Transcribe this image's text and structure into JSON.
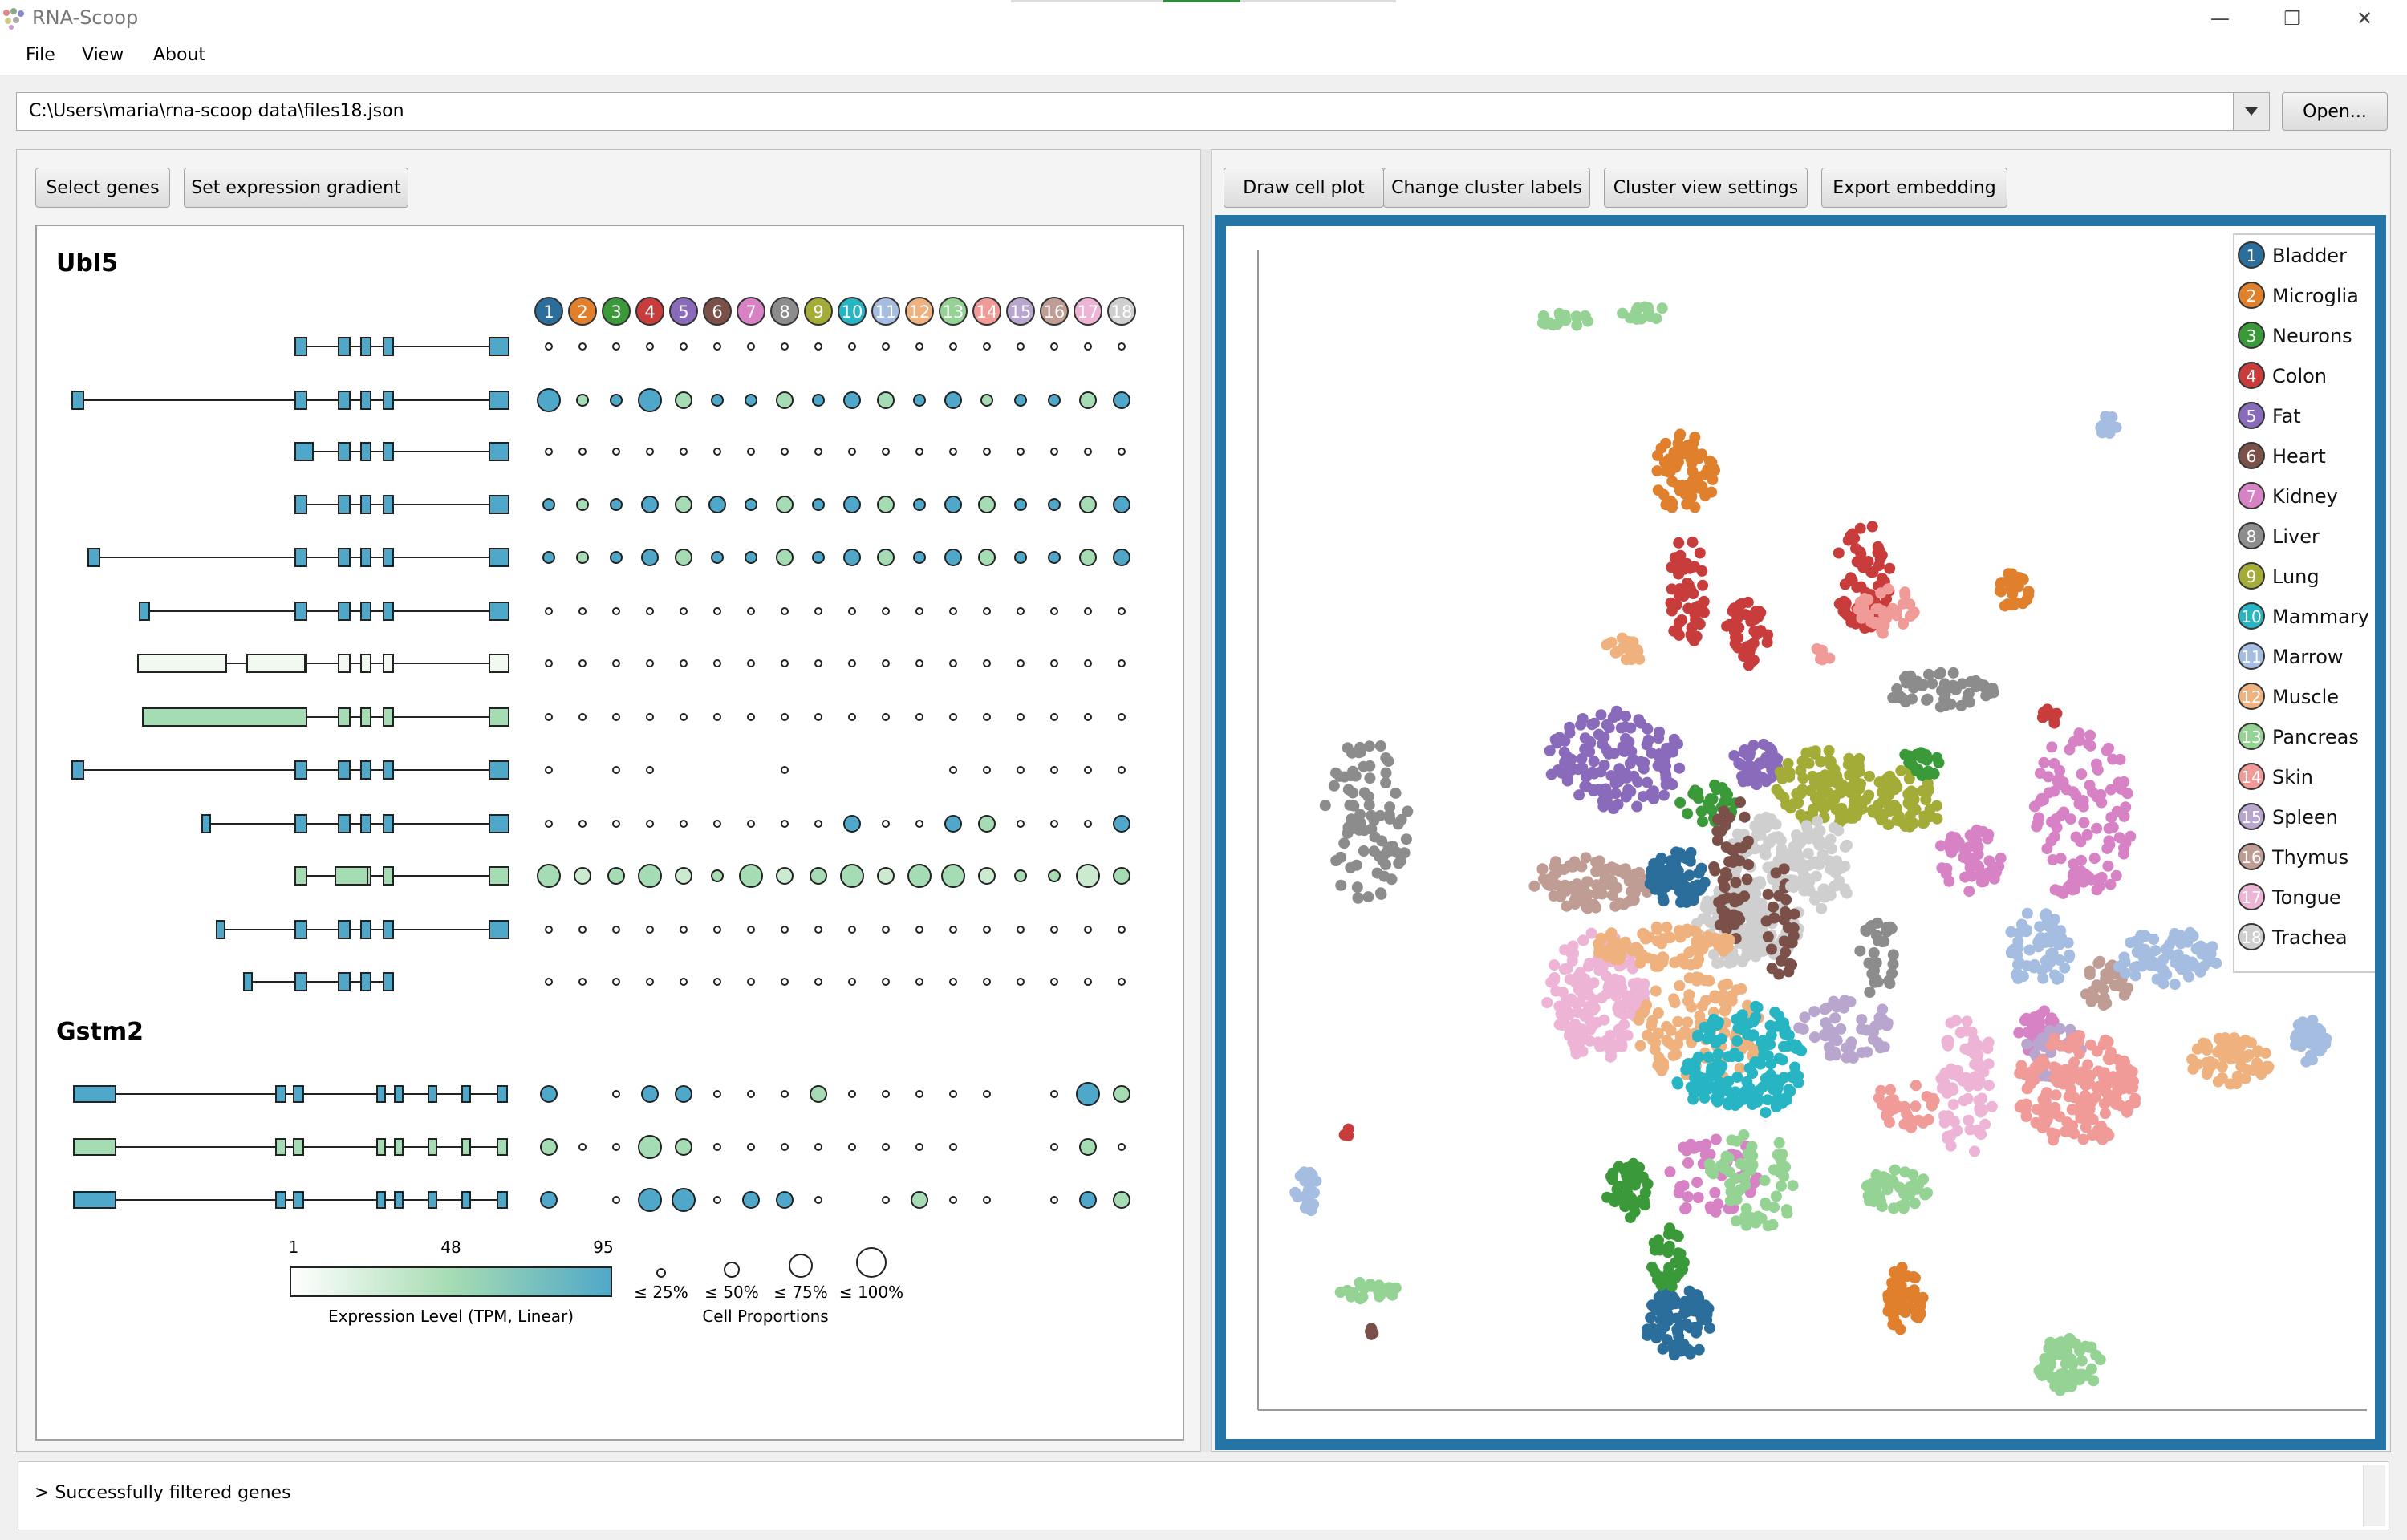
{
  "window": {
    "title": "RNA-Scoop",
    "controls": {
      "minimize": "—",
      "restore": "❐",
      "close": "✕"
    }
  },
  "menu": [
    "File",
    "View",
    "About"
  ],
  "path_bar": {
    "value": "C:\\Users\\maria\\rna-scoop data\\files18.json",
    "open_label": "Open..."
  },
  "left_toolbar": {
    "select_genes": "Select genes",
    "set_gradient": "Set expression gradient"
  },
  "right_toolbar": {
    "draw_cell_plot": "Draw cell plot",
    "change_cluster_labels": "Change cluster labels",
    "cluster_view_settings": "Cluster view settings",
    "export_embedding": "Export embedding"
  },
  "clusters": [
    {
      "n": "1",
      "name": "Bladder",
      "color": "#2b6e9c"
    },
    {
      "n": "2",
      "name": "Microglia",
      "color": "#e07f2c"
    },
    {
      "n": "3",
      "name": "Neurons",
      "color": "#3a9a3a"
    },
    {
      "n": "4",
      "name": "Colon",
      "color": "#c83c3c"
    },
    {
      "n": "5",
      "name": "Fat",
      "color": "#8a6bbb"
    },
    {
      "n": "6",
      "name": "Heart",
      "color": "#7a5048"
    },
    {
      "n": "7",
      "name": "Kidney",
      "color": "#d782c4"
    },
    {
      "n": "8",
      "name": "Liver",
      "color": "#8c8c8c"
    },
    {
      "n": "9",
      "name": "Lung",
      "color": "#a4ac38"
    },
    {
      "n": "10",
      "name": "Mammary",
      "color": "#27b5c4"
    },
    {
      "n": "11",
      "name": "Marrow",
      "color": "#a4bde0"
    },
    {
      "n": "12",
      "name": "Muscle",
      "color": "#efb27e"
    },
    {
      "n": "13",
      "name": "Pancreas",
      "color": "#94d394"
    },
    {
      "n": "14",
      "name": "Skin",
      "color": "#f19b98"
    },
    {
      "n": "15",
      "name": "Spleen",
      "color": "#b8a6cf"
    },
    {
      "n": "16",
      "name": "Thymus",
      "color": "#bf9d95"
    },
    {
      "n": "17",
      "name": "Tongue",
      "color": "#eeb4d6"
    },
    {
      "n": "18",
      "name": "Trachea",
      "color": "#cfcfcf"
    }
  ],
  "genes": [
    {
      "name": "Ubl5",
      "isoform_count": 13
    },
    {
      "name": "Gstm2",
      "isoform_count": 3
    }
  ],
  "gradient_legend": {
    "min": "1",
    "mid": "48",
    "max": "95",
    "title": "Expression Level (TPM, Linear)",
    "colors": [
      "#ffffff",
      "#a6dcb3",
      "#4fa8c9"
    ]
  },
  "proportion_legend": {
    "labels": [
      "≤ 25%",
      "≤ 50%",
      "≤ 75%",
      "≤ 100%"
    ],
    "title": "Cell Proportions"
  },
  "status": {
    "message": "> Successfully filtered genes"
  }
}
